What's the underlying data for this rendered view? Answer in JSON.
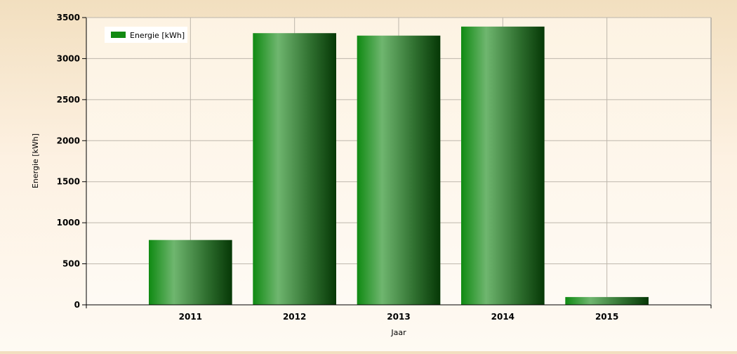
{
  "chart_data": {
    "type": "bar",
    "categories": [
      "2011",
      "2012",
      "2013",
      "2014",
      "2015"
    ],
    "x_tick_labels": [
      "2011",
      "2012",
      "2013",
      "2014",
      "2015"
    ],
    "series": [
      {
        "name": "Energie [kWh]",
        "values": [
          790,
          3310,
          3280,
          3390,
          95
        ],
        "color": "#118a11"
      }
    ],
    "xlabel": "Jaar",
    "ylabel": "Energie [kWh]",
    "ylim": [
      0,
      3500
    ],
    "y_ticks": [
      0,
      500,
      1000,
      1500,
      2000,
      2500,
      3000,
      3500
    ],
    "x_range": [
      2010,
      2016
    ],
    "grid": true,
    "legend_position": "top-left"
  }
}
